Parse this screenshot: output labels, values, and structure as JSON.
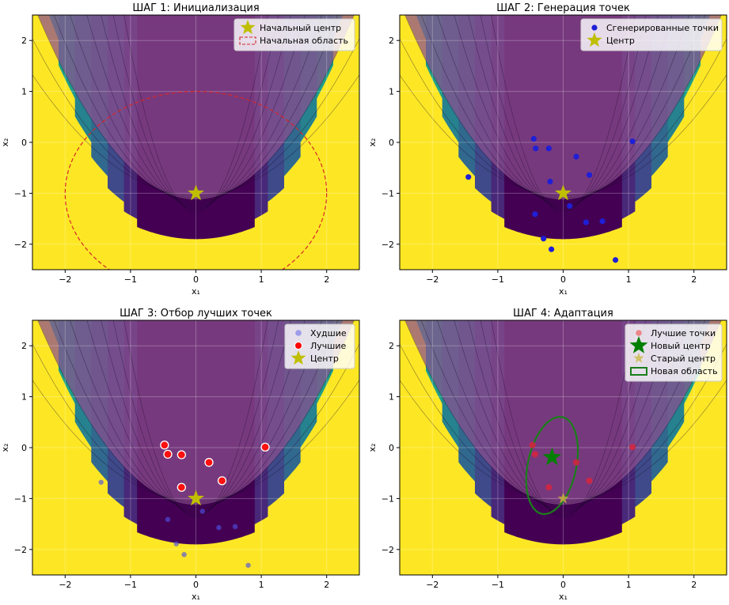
{
  "figure": {
    "background": "#ffffff",
    "field_colors": [
      "#440154",
      "#482878",
      "#3e4a89",
      "#31688e",
      "#26828e",
      "#1f9e89",
      "#35b779",
      "#6ece58",
      "#b5de2b",
      "#fde725"
    ],
    "overlay_color": "#8b4f8f"
  },
  "chart_data": [
    {
      "type": "scatter",
      "title": "ШАГ 1: Инициализация",
      "xlabel": "x₁",
      "ylabel": "x₂",
      "xlim": [
        -2.5,
        2.5
      ],
      "ylim": [
        -2.5,
        2.5
      ],
      "xticks": [
        -2,
        -1,
        0,
        1,
        2
      ],
      "yticks": [
        -2,
        -1,
        0,
        1,
        2
      ],
      "xtick_labels": [
        "−2",
        "−1",
        "0",
        "1",
        "2"
      ],
      "ytick_labels": [
        "−2",
        "−1",
        "0",
        "1",
        "2"
      ],
      "grid": true,
      "legend_position": "top-right",
      "legend": [
        {
          "label": "Начальный центр",
          "marker": "star",
          "color": "#bfbf00"
        },
        {
          "label": "Начальная область",
          "marker": "dashed-line",
          "color": "#d62728"
        }
      ],
      "center": {
        "x": 0,
        "y": -1,
        "color": "#bfbf00"
      },
      "regions": [
        {
          "name": "Начальная область",
          "cx": 0,
          "cy": -1,
          "rx": 2,
          "ry": 2,
          "angle": 0,
          "style": "dashed",
          "color": "#d62728"
        }
      ]
    },
    {
      "type": "scatter",
      "title": "ШАГ 2: Генерация точек",
      "xlabel": "x₁",
      "ylabel": "x₂",
      "xlim": [
        -2.5,
        2.5
      ],
      "ylim": [
        -2.5,
        2.5
      ],
      "xticks": [
        -2,
        -1,
        0,
        1,
        2
      ],
      "yticks": [
        -2,
        -1,
        0,
        1,
        2
      ],
      "xtick_labels": [
        "−2",
        "−1",
        "0",
        "1",
        "2"
      ],
      "ytick_labels": [
        "−2",
        "−1",
        "0",
        "1",
        "2"
      ],
      "grid": true,
      "legend_position": "top-right",
      "legend": [
        {
          "label": "Сгенерированные точки",
          "marker": "circle",
          "color": "#1f1fd6"
        },
        {
          "label": "Центр",
          "marker": "star",
          "color": "#bfbf00"
        }
      ],
      "series": [
        {
          "name": "Сгенерированные точки",
          "color": "#1f1fd6",
          "x": [
            -0.45,
            -0.42,
            -0.22,
            0.2,
            1.06,
            -0.2,
            0.4,
            -1.45,
            0.1,
            -0.43,
            0.35,
            0.6,
            -0.3,
            -0.18,
            0.8
          ],
          "y": [
            0.07,
            -0.12,
            -0.12,
            -0.28,
            0.02,
            -0.77,
            -0.64,
            -0.68,
            -1.25,
            -1.41,
            -1.57,
            -1.55,
            -1.89,
            -2.1,
            -2.31
          ]
        }
      ],
      "center": {
        "x": 0,
        "y": -1,
        "color": "#bfbf00"
      }
    },
    {
      "type": "scatter",
      "title": "ШАГ 3: Отбор лучших точек",
      "xlabel": "x₁",
      "ylabel": "x₂",
      "xlim": [
        -2.5,
        2.5
      ],
      "ylim": [
        -2.5,
        2.5
      ],
      "xticks": [
        -2,
        -1,
        0,
        1,
        2
      ],
      "yticks": [
        -2,
        -1,
        0,
        1,
        2
      ],
      "xtick_labels": [
        "−2",
        "−1",
        "0",
        "1",
        "2"
      ],
      "ytick_labels": [
        "−2",
        "−1",
        "0",
        "1",
        "2"
      ],
      "grid": true,
      "legend_position": "top-right",
      "legend": [
        {
          "label": "Худшие",
          "marker": "circle-light",
          "color": "#7f7fe8"
        },
        {
          "label": "Лучшие",
          "marker": "circle-white-edge",
          "color": "#ff0000"
        },
        {
          "label": "Центр",
          "marker": "star",
          "color": "#bfbf00"
        }
      ],
      "series": [
        {
          "name": "Худшие",
          "color": "#5050e0",
          "x": [
            -1.45,
            0.1,
            -0.43,
            0.35,
            0.6,
            -0.3,
            -0.18,
            0.8
          ],
          "y": [
            -0.68,
            -1.25,
            -1.41,
            -1.57,
            -1.55,
            -1.89,
            -2.1,
            -2.31
          ]
        },
        {
          "name": "Лучшие",
          "color": "#ff1010",
          "x": [
            -0.48,
            -0.43,
            -0.22,
            0.2,
            1.06,
            -0.22,
            0.4
          ],
          "y": [
            0.05,
            -0.13,
            -0.14,
            -0.29,
            0.01,
            -0.78,
            -0.65
          ]
        }
      ],
      "center": {
        "x": 0,
        "y": -1,
        "color": "#bfbf00"
      }
    },
    {
      "type": "scatter",
      "title": "ШАГ 4: Адаптация",
      "xlabel": "x₁",
      "ylabel": "x₂",
      "xlim": [
        -2.5,
        2.5
      ],
      "ylim": [
        -2.5,
        2.5
      ],
      "xticks": [
        -2,
        -1,
        0,
        1,
        2
      ],
      "yticks": [
        -2,
        -1,
        0,
        1,
        2
      ],
      "xtick_labels": [
        "−2",
        "−1",
        "0",
        "1",
        "2"
      ],
      "ytick_labels": [
        "−2",
        "−1",
        "0",
        "1",
        "2"
      ],
      "grid": true,
      "legend_position": "top-right",
      "legend": [
        {
          "label": "Лучшие точки",
          "marker": "circle-light",
          "color": "#f06060"
        },
        {
          "label": "Новый центр",
          "marker": "star-big",
          "color": "#007f00"
        },
        {
          "label": "Старый центр",
          "marker": "star-light",
          "color": "#c9b63a"
        },
        {
          "label": "Новая область",
          "marker": "box",
          "color": "#1a7f1a"
        }
      ],
      "series": [
        {
          "name": "Лучшие точки",
          "color": "#d8243c",
          "x": [
            -0.47,
            -0.43,
            0.2,
            1.06,
            0.4,
            -0.22
          ],
          "y": [
            0.05,
            -0.13,
            -0.29,
            0.01,
            -0.65,
            -0.78
          ]
        }
      ],
      "center": {
        "x": 0,
        "y": -1,
        "color": "#c9b63a",
        "label": "Старый центр"
      },
      "new_center": {
        "x": -0.17,
        "y": -0.19,
        "color": "#007f00"
      },
      "regions": [
        {
          "name": "Новая область",
          "cx": -0.17,
          "cy": -0.35,
          "rx": 0.37,
          "ry": 0.97,
          "angle": 12,
          "style": "solid",
          "color": "#1a7f1a"
        }
      ]
    }
  ]
}
